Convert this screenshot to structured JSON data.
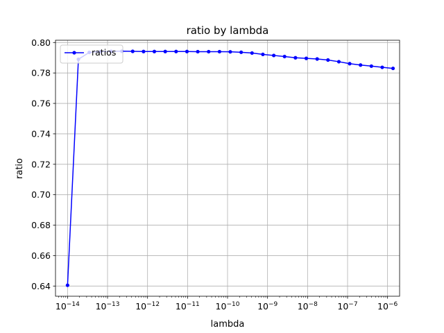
{
  "chart_data": {
    "type": "line",
    "title": "ratio by lambda",
    "xlabel": "lambda",
    "ylabel": "ratio",
    "xscale": "log",
    "xlim": [
      5e-15,
      2e-06
    ],
    "ylim": [
      0.6333,
      0.8015
    ],
    "grid": true,
    "legend_position": "top-left",
    "x_ticks": [
      {
        "value": 1e-14,
        "base": "10",
        "exp": "−14"
      },
      {
        "value": 1e-13,
        "base": "10",
        "exp": "−13"
      },
      {
        "value": 1e-12,
        "base": "10",
        "exp": "−12"
      },
      {
        "value": 1e-11,
        "base": "10",
        "exp": "−11"
      },
      {
        "value": 1e-10,
        "base": "10",
        "exp": "−10"
      },
      {
        "value": 1e-09,
        "base": "10",
        "exp": "−9"
      },
      {
        "value": 1e-08,
        "base": "10",
        "exp": "−8"
      },
      {
        "value": 1e-07,
        "base": "10",
        "exp": "−7"
      },
      {
        "value": 1e-06,
        "base": "10",
        "exp": "−6"
      }
    ],
    "y_ticks": [
      "0.64",
      "0.66",
      "0.68",
      "0.70",
      "0.72",
      "0.74",
      "0.76",
      "0.78",
      "0.80"
    ],
    "series": [
      {
        "name": "ratios",
        "color": "#0000ff",
        "x": [
          1e-14,
          1.87e-14,
          3.49e-14,
          6.52e-14,
          1.22e-13,
          2.28e-13,
          4.25e-13,
          7.94e-13,
          1.48e-12,
          2.77e-12,
          5.17e-12,
          9.66e-12,
          1.8e-11,
          3.37e-11,
          6.29e-11,
          1.17e-10,
          2.19e-10,
          4.09e-10,
          7.64e-10,
          1.43e-09,
          2.66e-09,
          4.98e-09,
          9.29e-09,
          1.74e-08,
          3.24e-08,
          6.06e-08,
          1.13e-07,
          2.11e-07,
          3.94e-07,
          7.36e-07,
          1.37e-06
        ],
        "y": [
          0.6405,
          0.789,
          0.7935,
          0.794,
          0.7942,
          0.7943,
          0.7942,
          0.7941,
          0.7941,
          0.7941,
          0.7941,
          0.7941,
          0.794,
          0.794,
          0.794,
          0.7939,
          0.7936,
          0.7931,
          0.7922,
          0.7915,
          0.7908,
          0.79,
          0.7896,
          0.7892,
          0.7885,
          0.7874,
          0.7861,
          0.7852,
          0.7845,
          0.7837,
          0.783
        ]
      }
    ]
  }
}
